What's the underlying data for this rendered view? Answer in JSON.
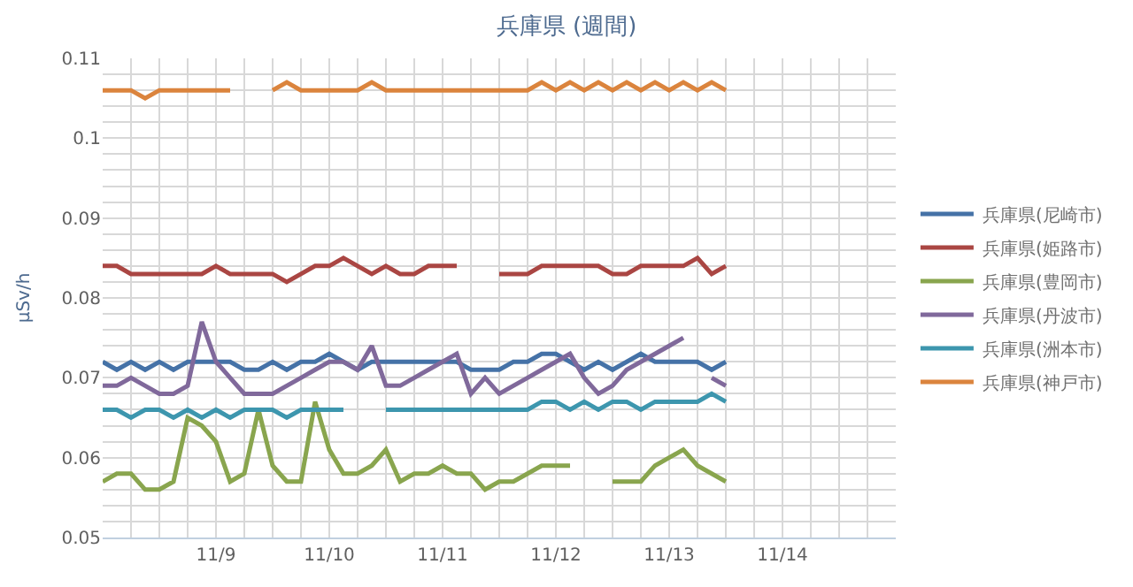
{
  "chart_data": {
    "type": "line",
    "title": "兵庫県 (週間)",
    "ylabel": "μSv/h",
    "x": [
      "--11-08T00:00",
      "--11-08T03:00",
      "--11-08T06:00",
      "--11-08T09:00",
      "--11-08T12:00",
      "--11-08T15:00",
      "--11-08T18:00",
      "--11-08T21:00",
      "--11-09T00:00",
      "--11-09T03:00",
      "--11-09T06:00",
      "--11-09T09:00",
      "--11-09T12:00",
      "--11-09T15:00",
      "--11-09T18:00",
      "--11-09T21:00",
      "--11-10T00:00",
      "--11-10T03:00",
      "--11-10T06:00",
      "--11-10T09:00",
      "--11-10T12:00",
      "--11-10T15:00",
      "--11-10T18:00",
      "--11-10T21:00",
      "--11-11T00:00",
      "--11-11T03:00",
      "--11-11T06:00",
      "--11-11T09:00",
      "--11-11T12:00",
      "--11-11T15:00",
      "--11-11T18:00",
      "--11-11T21:00",
      "--11-12T00:00",
      "--11-12T03:00",
      "--11-12T06:00",
      "--11-12T09:00",
      "--11-12T12:00",
      "--11-12T15:00",
      "--11-12T18:00",
      "--11-12T21:00",
      "--11-13T00:00",
      "--11-13T03:00",
      "--11-13T06:00",
      "--11-13T09:00",
      "--11-13T12:00"
    ],
    "series": [
      {
        "name": "兵庫県(尼崎市)",
        "color": "#4572a7",
        "values": [
          0.072,
          0.071,
          0.072,
          0.071,
          0.072,
          0.071,
          0.072,
          0.072,
          0.072,
          0.072,
          0.071,
          0.071,
          0.072,
          0.071,
          0.072,
          0.072,
          0.073,
          0.072,
          0.071,
          0.072,
          0.072,
          0.072,
          0.072,
          0.072,
          0.072,
          0.072,
          0.071,
          0.071,
          0.071,
          0.072,
          0.072,
          0.073,
          0.073,
          0.072,
          0.071,
          0.072,
          0.071,
          0.072,
          0.073,
          0.072,
          0.072,
          0.072,
          0.072,
          0.071,
          0.072
        ]
      },
      {
        "name": "兵庫県(姫路市)",
        "color": "#aa4643",
        "values": [
          0.084,
          0.084,
          0.083,
          0.083,
          0.083,
          0.083,
          0.083,
          0.083,
          0.084,
          0.083,
          0.083,
          0.083,
          0.083,
          0.082,
          0.083,
          0.084,
          0.084,
          0.085,
          0.084,
          0.083,
          0.084,
          0.083,
          0.083,
          0.084,
          0.084,
          0.084,
          null,
          null,
          0.083,
          0.083,
          0.083,
          0.084,
          0.084,
          0.084,
          0.084,
          0.084,
          0.083,
          0.083,
          0.084,
          0.084,
          0.084,
          0.084,
          0.085,
          0.083,
          0.084
        ]
      },
      {
        "name": "兵庫県(豊岡市)",
        "color": "#89a54e",
        "values": [
          0.057,
          0.058,
          0.058,
          0.056,
          0.056,
          0.057,
          0.065,
          0.064,
          0.062,
          0.057,
          0.058,
          0.066,
          0.059,
          0.057,
          0.057,
          0.067,
          0.061,
          0.058,
          0.058,
          0.059,
          0.061,
          0.057,
          0.058,
          0.058,
          0.059,
          0.058,
          0.058,
          0.056,
          0.057,
          0.057,
          0.058,
          0.059,
          0.059,
          0.059,
          null,
          null,
          0.057,
          0.057,
          0.057,
          0.059,
          0.06,
          0.061,
          0.059,
          0.058,
          0.057
        ]
      },
      {
        "name": "兵庫県(丹波市)",
        "color": "#80699b",
        "values": [
          0.069,
          0.069,
          0.07,
          0.069,
          0.068,
          0.068,
          0.069,
          0.077,
          0.072,
          0.07,
          0.068,
          0.068,
          0.068,
          0.069,
          0.07,
          0.071,
          0.072,
          0.072,
          0.071,
          0.074,
          0.069,
          0.069,
          0.07,
          0.071,
          0.072,
          0.073,
          0.068,
          0.07,
          0.068,
          0.069,
          0.07,
          0.071,
          0.072,
          0.073,
          0.07,
          0.068,
          0.069,
          0.071,
          0.072,
          0.073,
          0.074,
          0.075,
          null,
          0.07,
          0.069
        ]
      },
      {
        "name": "兵庫県(洲本市)",
        "color": "#3d96ae",
        "values": [
          0.066,
          0.066,
          0.065,
          0.066,
          0.066,
          0.065,
          0.066,
          0.065,
          0.066,
          0.065,
          0.066,
          0.066,
          0.066,
          0.065,
          0.066,
          0.066,
          0.066,
          0.066,
          null,
          null,
          0.066,
          0.066,
          0.066,
          0.066,
          0.066,
          0.066,
          0.066,
          0.066,
          0.066,
          0.066,
          0.066,
          0.067,
          0.067,
          0.066,
          0.067,
          0.066,
          0.067,
          0.067,
          0.066,
          0.067,
          0.067,
          0.067,
          0.067,
          0.068,
          0.067
        ]
      },
      {
        "name": "兵庫県(神戸市)",
        "color": "#db843d",
        "values": [
          0.106,
          0.106,
          0.106,
          0.105,
          0.106,
          0.106,
          0.106,
          0.106,
          0.106,
          0.106,
          null,
          null,
          0.106,
          0.107,
          0.106,
          0.106,
          0.106,
          0.106,
          0.106,
          0.107,
          0.106,
          0.106,
          0.106,
          0.106,
          0.106,
          0.106,
          0.106,
          0.106,
          0.106,
          0.106,
          0.106,
          0.107,
          0.106,
          0.107,
          0.106,
          0.107,
          0.106,
          0.107,
          0.106,
          0.107,
          0.106,
          0.107,
          0.106,
          0.107,
          0.106
        ]
      }
    ],
    "xlim": [
      "--11-08T00:00",
      "--11-15T00:00"
    ],
    "xticks": [
      {
        "value": "--11-08T06:00",
        "label": null
      },
      {
        "value": "--11-08T12:00",
        "label": null
      },
      {
        "value": "--11-08T18:00",
        "label": null
      },
      {
        "value": "--11-09T00:00",
        "label": "11/9"
      },
      {
        "value": "--11-09T06:00",
        "label": null
      },
      {
        "value": "--11-09T12:00",
        "label": null
      },
      {
        "value": "--11-09T18:00",
        "label": null
      },
      {
        "value": "--11-10T00:00",
        "label": "11/10"
      },
      {
        "value": "--11-10T06:00",
        "label": null
      },
      {
        "value": "--11-10T12:00",
        "label": null
      },
      {
        "value": "--11-10T18:00",
        "label": null
      },
      {
        "value": "--11-11T00:00",
        "label": "11/11"
      },
      {
        "value": "--11-11T06:00",
        "label": null
      },
      {
        "value": "--11-11T12:00",
        "label": null
      },
      {
        "value": "--11-11T18:00",
        "label": null
      },
      {
        "value": "--11-12T00:00",
        "label": "11/12"
      },
      {
        "value": "--11-12T06:00",
        "label": null
      },
      {
        "value": "--11-12T12:00",
        "label": null
      },
      {
        "value": "--11-12T18:00",
        "label": null
      },
      {
        "value": "--11-13T00:00",
        "label": "11/13"
      },
      {
        "value": "--11-13T06:00",
        "label": null
      },
      {
        "value": "--11-13T12:00",
        "label": null
      },
      {
        "value": "--11-13T18:00",
        "label": null
      },
      {
        "value": "--11-14T00:00",
        "label": "11/14"
      },
      {
        "value": "--11-14T06:00",
        "label": null
      },
      {
        "value": "--11-14T12:00",
        "label": null
      },
      {
        "value": "--11-14T18:00",
        "label": null
      }
    ],
    "ylim": [
      0.05,
      0.11
    ],
    "yticks": [
      0.05,
      {
        "value": 0.052,
        "label": null
      },
      {
        "value": 0.054,
        "label": null
      },
      {
        "value": 0.056,
        "label": null
      },
      {
        "value": 0.058,
        "label": null
      },
      0.06,
      {
        "value": 0.062,
        "label": null
      },
      {
        "value": 0.064,
        "label": null
      },
      {
        "value": 0.066,
        "label": null
      },
      {
        "value": 0.068,
        "label": null
      },
      0.07,
      {
        "value": 0.072,
        "label": null
      },
      {
        "value": 0.074,
        "label": null
      },
      {
        "value": 0.076,
        "label": null
      },
      {
        "value": 0.078,
        "label": null
      },
      0.08,
      {
        "value": 0.082,
        "label": null
      },
      {
        "value": 0.084,
        "label": null
      },
      {
        "value": 0.086,
        "label": null
      },
      {
        "value": 0.088,
        "label": null
      },
      0.09,
      {
        "value": 0.092,
        "label": null
      },
      {
        "value": 0.094,
        "label": null
      },
      {
        "value": 0.096,
        "label": null
      },
      {
        "value": 0.098,
        "label": null
      },
      0.1,
      {
        "value": 0.102,
        "label": null
      },
      {
        "value": 0.104,
        "label": null
      },
      {
        "value": 0.106,
        "label": null
      },
      {
        "value": 0.108,
        "label": null
      },
      0.11
    ],
    "grid": true,
    "legend": "right",
    "marker": "none",
    "line_style": "solid"
  }
}
